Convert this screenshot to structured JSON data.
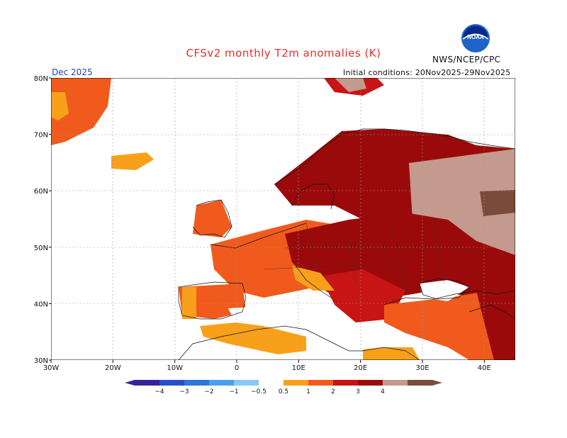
{
  "header": {
    "title": "CFSv2 monthly T2m anomalies (K)",
    "agency": "NWS/NCEP/CPC",
    "logo_text": "NOAA",
    "month": "Dec 2025",
    "initial_conditions": "Initial conditions: 20Nov2025-29Nov2025"
  },
  "map": {
    "lon_ticks": [
      "30W",
      "20W",
      "10W",
      "0",
      "10E",
      "20E",
      "30E",
      "40E"
    ],
    "lat_ticks": [
      "30N",
      "40N",
      "50N",
      "60N",
      "70N",
      "80N"
    ],
    "lon_range": [
      -30,
      45
    ],
    "lat_range": [
      30,
      80
    ],
    "grid": true,
    "colors": {
      "neg4": "#3a1fa0",
      "neg3": "#2a4fc8",
      "neg2": "#2a78d8",
      "neg1": "#4aa0f0",
      "neg05": "#88c8f8",
      "pos05": "#f9a01b",
      "pos1": "#f05a1c",
      "pos2": "#c81414",
      "pos3": "#9b0a0a",
      "pos4": "#c49a8e",
      "pos5": "#7a4a3a"
    }
  },
  "legend": {
    "labels": [
      "−4",
      "−3",
      "−2",
      "−1",
      "−0.5",
      "0.5",
      "1",
      "2",
      "3",
      "4"
    ],
    "colors": [
      "#3a1fa0",
      "#2a4fc8",
      "#2a78d8",
      "#4aa0f0",
      "#88c8f8",
      "#ffffff",
      "#f9a01b",
      "#f05a1c",
      "#c81414",
      "#9b0a0a",
      "#c49a8e",
      "#7a4a3a"
    ]
  }
}
